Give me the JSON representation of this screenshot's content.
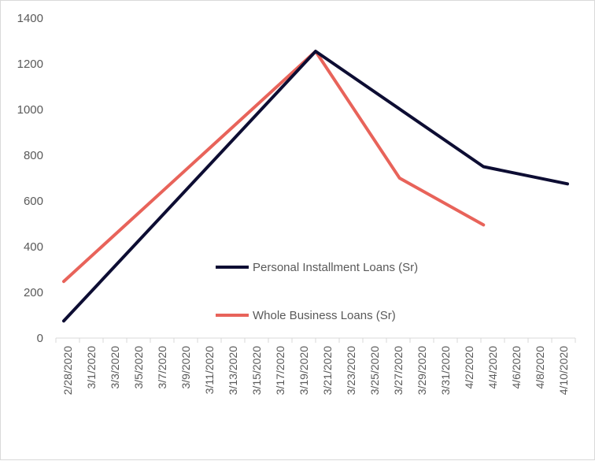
{
  "chart_data": {
    "type": "line",
    "title": "",
    "xlabel": "",
    "ylabel": "",
    "ylim": [
      0,
      1400
    ],
    "yticks": [
      0,
      200,
      400,
      600,
      800,
      1000,
      1200,
      1400
    ],
    "x_ticks": [
      "2/28/2020",
      "3/1/2020",
      "3/3/2020",
      "3/5/2020",
      "3/7/2020",
      "3/9/2020",
      "3/11/2020",
      "3/13/2020",
      "3/15/2020",
      "3/17/2020",
      "3/19/2020",
      "3/21/2020",
      "3/23/2020",
      "3/25/2020",
      "3/27/2020",
      "3/29/2020",
      "3/31/2020",
      "4/2/2020",
      "4/4/2020",
      "4/6/2020",
      "4/8/2020",
      "4/10/2020"
    ],
    "grid": false,
    "legend_position": "center",
    "series": [
      {
        "name": "Personal Installment Loans (Sr)",
        "color": "#0d0d33",
        "x": [
          "2/28/2020",
          "3/20/2020",
          "4/3/2020",
          "4/10/2020"
        ],
        "values": [
          75,
          1255,
          750,
          675
        ]
      },
      {
        "name": "Whole Business Loans (Sr)",
        "color": "#e8635a",
        "x": [
          "2/28/2020",
          "3/20/2020",
          "3/27/2020",
          "4/3/2020"
        ],
        "values": [
          248,
          1255,
          700,
          495
        ]
      }
    ]
  }
}
